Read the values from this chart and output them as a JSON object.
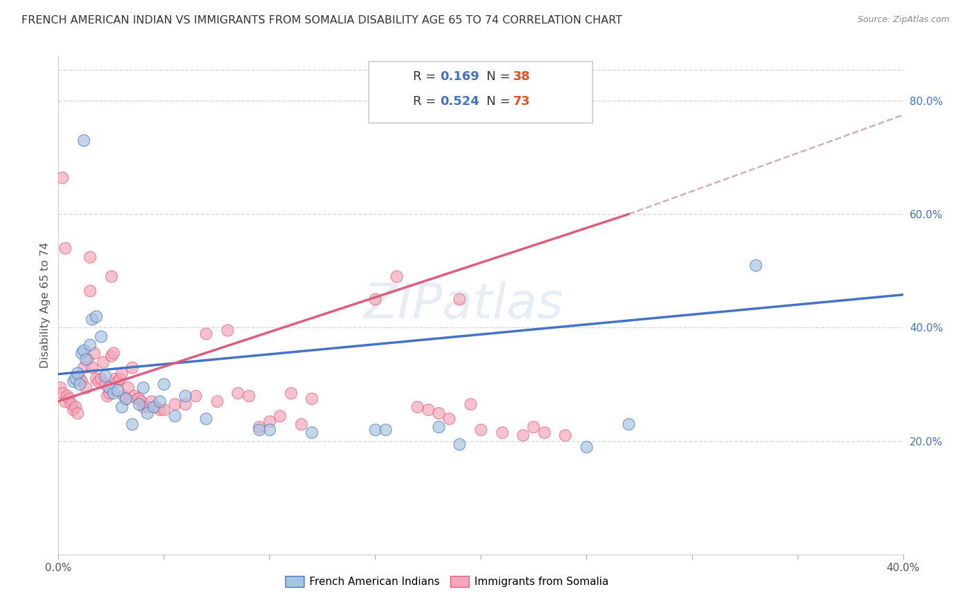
{
  "title": "FRENCH AMERICAN INDIAN VS IMMIGRANTS FROM SOMALIA DISABILITY AGE 65 TO 74 CORRELATION CHART",
  "source": "Source: ZipAtlas.com",
  "ylabel": "Disability Age 65 to 74",
  "xmin": 0.0,
  "xmax": 0.4,
  "ymin": 0.0,
  "ymax": 0.88,
  "xtick_positions": [
    0.0,
    0.05,
    0.1,
    0.15,
    0.2,
    0.25,
    0.3,
    0.35,
    0.4
  ],
  "xtick_labels": [
    "0.0%",
    "",
    "",
    "",
    "",
    "",
    "",
    "",
    "40.0%"
  ],
  "yticks_right": [
    0.2,
    0.4,
    0.6,
    0.8
  ],
  "ytick_labels_right": [
    "20.0%",
    "40.0%",
    "60.0%",
    "80.0%"
  ],
  "color_blue": "#a8c4e0",
  "color_pink": "#f4a7b9",
  "line_blue": "#4472c4",
  "line_pink": "#e05c7a",
  "line_dashed_color": "#d0b0b8",
  "blue_scatter": [
    [
      0.007,
      0.305
    ],
    [
      0.008,
      0.31
    ],
    [
      0.009,
      0.32
    ],
    [
      0.01,
      0.3
    ],
    [
      0.011,
      0.355
    ],
    [
      0.012,
      0.36
    ],
    [
      0.013,
      0.345
    ],
    [
      0.015,
      0.37
    ],
    [
      0.016,
      0.415
    ],
    [
      0.018,
      0.42
    ],
    [
      0.02,
      0.385
    ],
    [
      0.022,
      0.315
    ],
    [
      0.024,
      0.295
    ],
    [
      0.026,
      0.285
    ],
    [
      0.028,
      0.29
    ],
    [
      0.03,
      0.26
    ],
    [
      0.032,
      0.275
    ],
    [
      0.035,
      0.23
    ],
    [
      0.038,
      0.265
    ],
    [
      0.04,
      0.295
    ],
    [
      0.042,
      0.25
    ],
    [
      0.045,
      0.26
    ],
    [
      0.048,
      0.27
    ],
    [
      0.05,
      0.3
    ],
    [
      0.055,
      0.245
    ],
    [
      0.06,
      0.28
    ],
    [
      0.1,
      0.22
    ],
    [
      0.12,
      0.215
    ],
    [
      0.15,
      0.22
    ],
    [
      0.155,
      0.22
    ],
    [
      0.18,
      0.225
    ],
    [
      0.19,
      0.195
    ],
    [
      0.33,
      0.51
    ],
    [
      0.012,
      0.73
    ],
    [
      0.25,
      0.19
    ],
    [
      0.27,
      0.23
    ],
    [
      0.095,
      0.22
    ],
    [
      0.07,
      0.24
    ]
  ],
  "pink_scatter": [
    [
      0.001,
      0.295
    ],
    [
      0.002,
      0.285
    ],
    [
      0.003,
      0.27
    ],
    [
      0.004,
      0.28
    ],
    [
      0.005,
      0.275
    ],
    [
      0.006,
      0.265
    ],
    [
      0.007,
      0.255
    ],
    [
      0.008,
      0.26
    ],
    [
      0.009,
      0.25
    ],
    [
      0.01,
      0.31
    ],
    [
      0.011,
      0.305
    ],
    [
      0.012,
      0.33
    ],
    [
      0.013,
      0.295
    ],
    [
      0.014,
      0.345
    ],
    [
      0.015,
      0.465
    ],
    [
      0.016,
      0.33
    ],
    [
      0.017,
      0.355
    ],
    [
      0.018,
      0.31
    ],
    [
      0.019,
      0.305
    ],
    [
      0.02,
      0.31
    ],
    [
      0.021,
      0.34
    ],
    [
      0.022,
      0.3
    ],
    [
      0.023,
      0.28
    ],
    [
      0.024,
      0.285
    ],
    [
      0.025,
      0.35
    ],
    [
      0.026,
      0.355
    ],
    [
      0.027,
      0.31
    ],
    [
      0.028,
      0.305
    ],
    [
      0.029,
      0.31
    ],
    [
      0.03,
      0.32
    ],
    [
      0.031,
      0.28
    ],
    [
      0.032,
      0.275
    ],
    [
      0.033,
      0.295
    ],
    [
      0.035,
      0.33
    ],
    [
      0.036,
      0.28
    ],
    [
      0.037,
      0.275
    ],
    [
      0.038,
      0.275
    ],
    [
      0.039,
      0.27
    ],
    [
      0.04,
      0.26
    ],
    [
      0.042,
      0.26
    ],
    [
      0.044,
      0.27
    ],
    [
      0.046,
      0.26
    ],
    [
      0.048,
      0.255
    ],
    [
      0.05,
      0.255
    ],
    [
      0.055,
      0.265
    ],
    [
      0.06,
      0.265
    ],
    [
      0.065,
      0.28
    ],
    [
      0.07,
      0.39
    ],
    [
      0.075,
      0.27
    ],
    [
      0.08,
      0.395
    ],
    [
      0.085,
      0.285
    ],
    [
      0.09,
      0.28
    ],
    [
      0.095,
      0.225
    ],
    [
      0.1,
      0.235
    ],
    [
      0.105,
      0.245
    ],
    [
      0.11,
      0.285
    ],
    [
      0.115,
      0.23
    ],
    [
      0.12,
      0.275
    ],
    [
      0.002,
      0.665
    ],
    [
      0.015,
      0.525
    ],
    [
      0.025,
      0.49
    ],
    [
      0.003,
      0.54
    ],
    [
      0.15,
      0.45
    ],
    [
      0.16,
      0.49
    ],
    [
      0.17,
      0.26
    ],
    [
      0.175,
      0.255
    ],
    [
      0.18,
      0.25
    ],
    [
      0.185,
      0.24
    ],
    [
      0.19,
      0.45
    ],
    [
      0.195,
      0.265
    ],
    [
      0.2,
      0.22
    ],
    [
      0.21,
      0.215
    ],
    [
      0.22,
      0.21
    ],
    [
      0.225,
      0.225
    ],
    [
      0.23,
      0.215
    ],
    [
      0.24,
      0.21
    ]
  ],
  "blue_line_x": [
    0.0,
    0.4
  ],
  "blue_line_y": [
    0.318,
    0.458
  ],
  "pink_line_x": [
    0.0,
    0.27
  ],
  "pink_line_y": [
    0.27,
    0.6
  ],
  "dashed_line_x": [
    0.27,
    0.4
  ],
  "dashed_line_y": [
    0.6,
    0.775
  ],
  "watermark": "ZIPatlas",
  "background_color": "#ffffff",
  "grid_color": "#d8d8d8"
}
